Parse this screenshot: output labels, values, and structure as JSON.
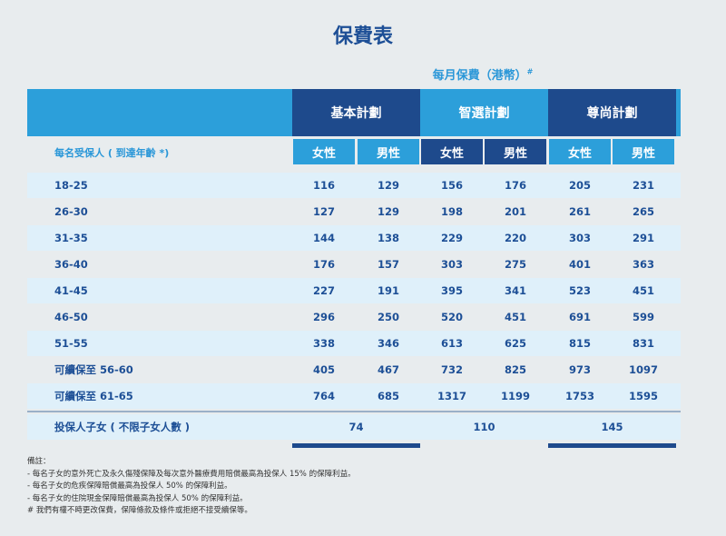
{
  "title": "保費表",
  "caption": "每月保費（港幣）",
  "caption_mark": "#",
  "plans": [
    "基本計劃",
    "智選計劃",
    "尊尚計劃"
  ],
  "sub_headers": [
    "女性",
    "男性",
    "女性",
    "男性",
    "女性",
    "男性"
  ],
  "age_header": "每名受保人 ( 到達年齡 *)",
  "rows": [
    {
      "label": "18-25",
      "values": [
        "116",
        "129",
        "156",
        "176",
        "205",
        "231"
      ]
    },
    {
      "label": "26-30",
      "values": [
        "127",
        "129",
        "198",
        "201",
        "261",
        "265"
      ]
    },
    {
      "label": "31-35",
      "values": [
        "144",
        "138",
        "229",
        "220",
        "303",
        "291"
      ]
    },
    {
      "label": "36-40",
      "values": [
        "176",
        "157",
        "303",
        "275",
        "401",
        "363"
      ]
    },
    {
      "label": "41-45",
      "values": [
        "227",
        "191",
        "395",
        "341",
        "523",
        "451"
      ]
    },
    {
      "label": "46-50",
      "values": [
        "296",
        "250",
        "520",
        "451",
        "691",
        "599"
      ]
    },
    {
      "label": "51-55",
      "values": [
        "338",
        "346",
        "613",
        "625",
        "815",
        "831"
      ]
    },
    {
      "label": "可續保至 56-60",
      "values": [
        "405",
        "467",
        "732",
        "825",
        "973",
        "1097"
      ]
    },
    {
      "label": "可續保至 61-65",
      "values": [
        "764",
        "685",
        "1317",
        "1199",
        "1753",
        "1595"
      ]
    }
  ],
  "child_row": {
    "label": "投保人子女 ( 不限子女人數 )",
    "values": [
      "74",
      "110",
      "145"
    ]
  },
  "notes": [
    "備註：",
    "- 每名子女的意外死亡及永久傷殘保障及每次意外醫療費用賠償最高為投保人 15% 的保障利益。",
    "- 每名子女的危疾保障賠償最高為投保人 50% 的保障利益。",
    "- 每名子女的住院現金保障賠償最高為投保人 50% 的保障利益。",
    "# 我們有權不時更改保費，保障條款及條件或拒絕不接受續保等。"
  ],
  "colors": {
    "dark_blue": "#1e4a8c",
    "light_blue": "#2c9fda",
    "row_shade": "#dff0fa"
  }
}
